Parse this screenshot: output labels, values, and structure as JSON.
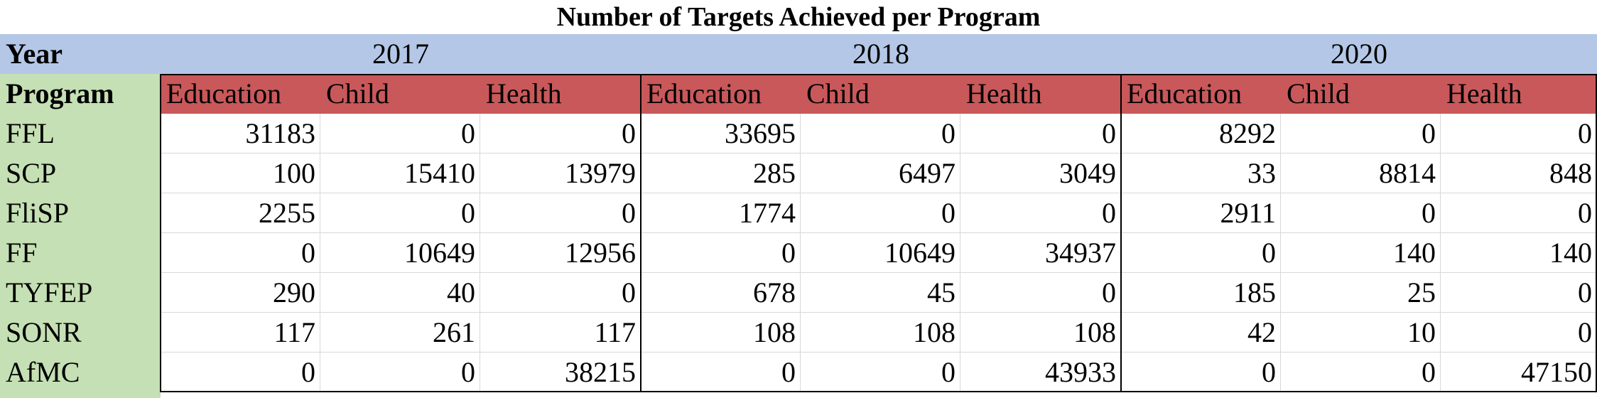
{
  "chart_data": {
    "type": "table",
    "title": "Number of Targets Achieved per Program",
    "row_header_label": "Year",
    "program_header_label": "Program",
    "years": [
      "2017",
      "2018",
      "2020"
    ],
    "categories_per_year": [
      "Education",
      "Child",
      "Health"
    ],
    "programs": [
      "FFL",
      "SCP",
      "FliSP",
      "FF",
      "TYFEP",
      "SONR",
      "AfMC"
    ],
    "values": {
      "FFL": [
        [
          31183,
          0,
          0
        ],
        [
          33695,
          0,
          0
        ],
        [
          8292,
          0,
          0
        ]
      ],
      "SCP": [
        [
          100,
          15410,
          13979
        ],
        [
          285,
          6497,
          3049
        ],
        [
          33,
          8814,
          848
        ]
      ],
      "FliSP": [
        [
          2255,
          0,
          0
        ],
        [
          1774,
          0,
          0
        ],
        [
          2911,
          0,
          0
        ]
      ],
      "FF": [
        [
          0,
          10649,
          12956
        ],
        [
          0,
          10649,
          34937
        ],
        [
          0,
          140,
          140
        ]
      ],
      "TYFEP": [
        [
          290,
          40,
          0
        ],
        [
          678,
          45,
          0
        ],
        [
          185,
          25,
          0
        ]
      ],
      "SONR": [
        [
          117,
          261,
          117
        ],
        [
          108,
          108,
          108
        ],
        [
          42,
          10,
          0
        ]
      ],
      "AfMC": [
        [
          0,
          0,
          38215
        ],
        [
          0,
          0,
          43933
        ],
        [
          0,
          0,
          47150
        ]
      ]
    },
    "colors": {
      "year_row": "#b4c7e7",
      "program_column": "#c5e0b4",
      "category_header": "#c9585a"
    }
  }
}
